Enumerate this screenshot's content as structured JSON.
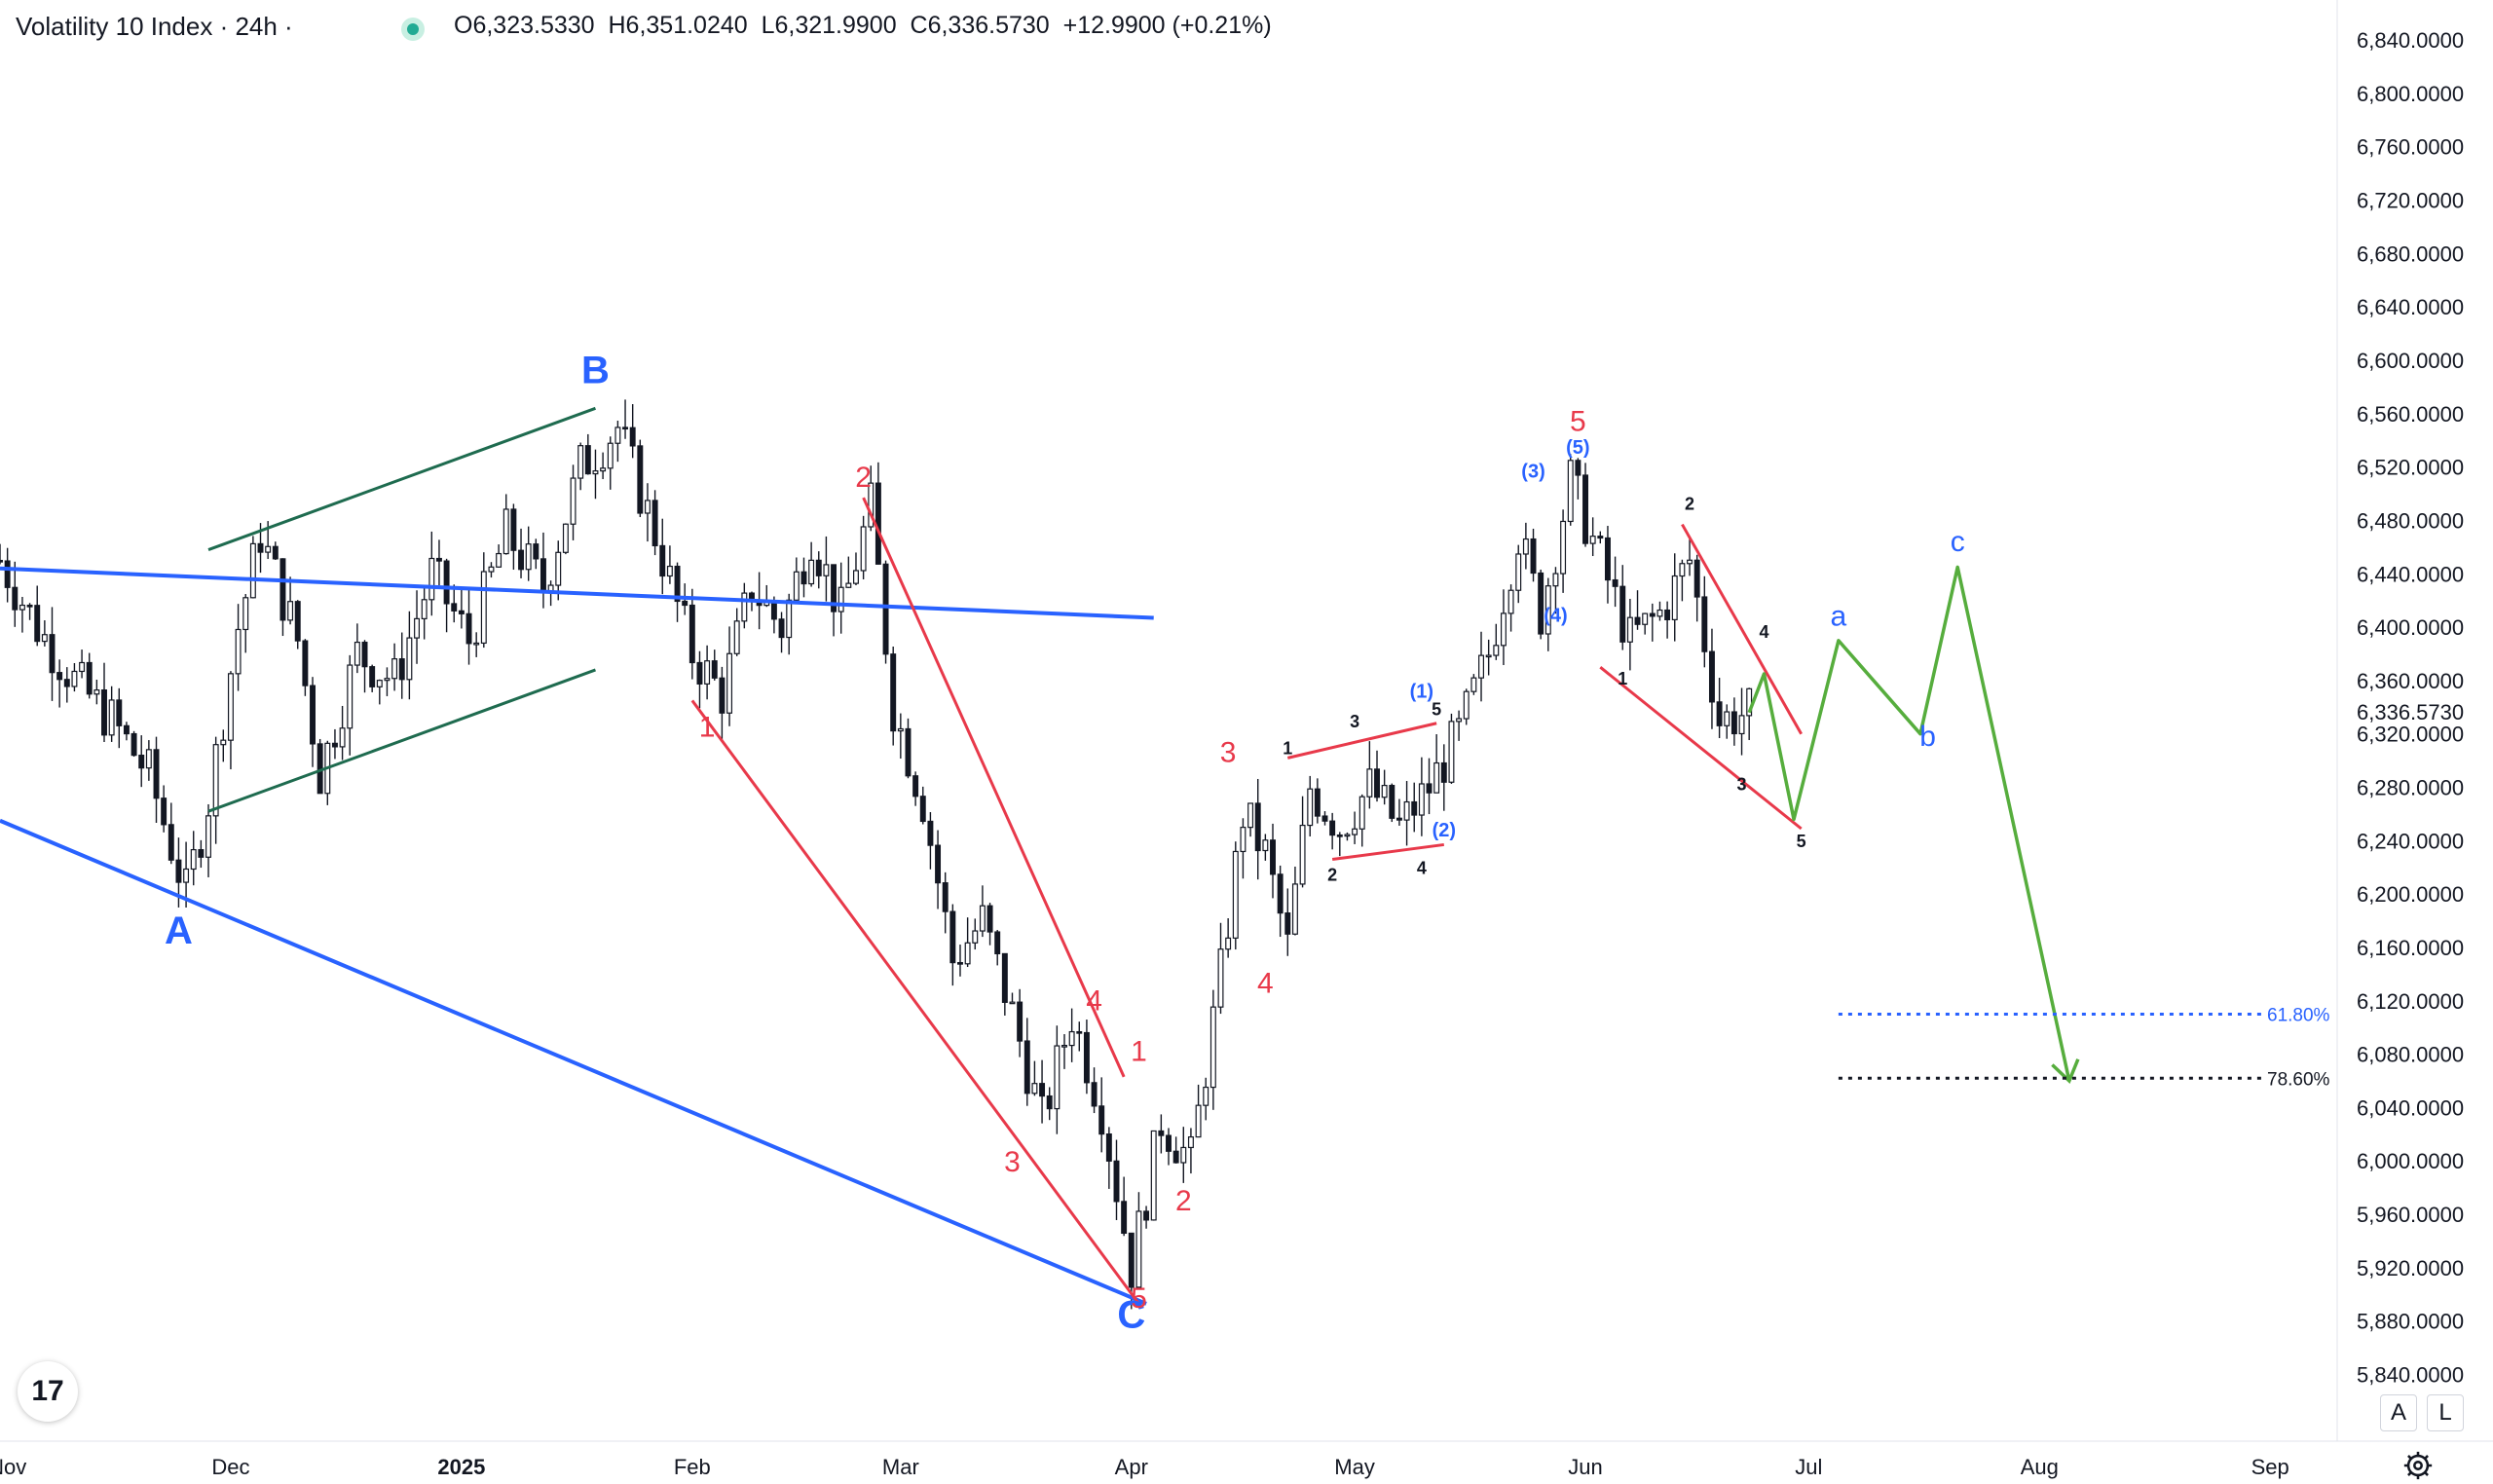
{
  "header": {
    "symbol": "Volatility 10 Index · 24h ·",
    "ohlc": {
      "open_label": "O",
      "open": "6,323.5330",
      "high_label": "H",
      "high": "6,351.0240",
      "low_label": "L",
      "low": "6,321.9900",
      "close_label": "C",
      "close": "6,336.5730",
      "change": "+12.9900 (+0.21%)"
    },
    "status_color": "#22ab94"
  },
  "chart_data": {
    "type": "candlestick",
    "price_axis": {
      "ylim": [
        5790,
        6870
      ],
      "ticks": [
        6840,
        6800,
        6760,
        6720,
        6680,
        6640,
        6600,
        6560,
        6520,
        6480,
        6440,
        6400,
        6360,
        6320,
        6280,
        6240,
        6200,
        6160,
        6120,
        6080,
        6040,
        6000,
        5960,
        5920,
        5880,
        5840
      ],
      "tick_labels": [
        "6,840.0000",
        "6,800.0000",
        "6,760.0000",
        "6,720.0000",
        "6,680.0000",
        "6,640.0000",
        "6,600.0000",
        "6,560.0000",
        "6,520.0000",
        "6,480.0000",
        "6,440.0000",
        "6,400.0000",
        "6,360.0000",
        "6,320.0000",
        "6,280.0000",
        "6,240.0000",
        "6,200.0000",
        "6,160.0000",
        "6,120.0000",
        "6,080.0000",
        "6,040.0000",
        "6,000.0000",
        "5,960.0000",
        "5,920.0000",
        "5,880.0000",
        "5,840.0000"
      ],
      "last_price": 6336.573,
      "last_price_label": "6,336.5730"
    },
    "time_axis": {
      "range": [
        "2024-10-31",
        "2025-09-10"
      ],
      "ticks": [
        {
          "date": "2024-11-01",
          "label": "Nov",
          "bold": false
        },
        {
          "date": "2024-12-01",
          "label": "Dec",
          "bold": false
        },
        {
          "date": "2025-01-01",
          "label": "2025",
          "bold": true
        },
        {
          "date": "2025-02-01",
          "label": "Feb",
          "bold": false
        },
        {
          "date": "2025-03-01",
          "label": "Mar",
          "bold": false
        },
        {
          "date": "2025-04-01",
          "label": "Apr",
          "bold": false
        },
        {
          "date": "2025-05-01",
          "label": "May",
          "bold": false
        },
        {
          "date": "2025-06-01",
          "label": "Jun",
          "bold": false
        },
        {
          "date": "2025-07-01",
          "label": "Jul",
          "bold": false
        },
        {
          "date": "2025-08-01",
          "label": "Aug",
          "bold": false
        },
        {
          "date": "2025-09-01",
          "label": "Sep",
          "bold": false
        }
      ]
    },
    "price_path": [
      {
        "date": "2024-10-31",
        "price": 6450
      },
      {
        "date": "2024-11-05",
        "price": 6400
      },
      {
        "date": "2024-11-10",
        "price": 6360
      },
      {
        "date": "2024-11-15",
        "price": 6330
      },
      {
        "date": "2024-11-20",
        "price": 6290
      },
      {
        "date": "2024-11-25",
        "price": 6200
      },
      {
        "date": "2024-11-28",
        "price": 6270
      },
      {
        "date": "2024-12-02",
        "price": 6400
      },
      {
        "date": "2024-12-05",
        "price": 6470
      },
      {
        "date": "2024-12-10",
        "price": 6390
      },
      {
        "date": "2024-12-13",
        "price": 6290
      },
      {
        "date": "2024-12-18",
        "price": 6380
      },
      {
        "date": "2024-12-23",
        "price": 6360
      },
      {
        "date": "2024-12-28",
        "price": 6440
      },
      {
        "date": "2025-01-02",
        "price": 6390
      },
      {
        "date": "2025-01-07",
        "price": 6470
      },
      {
        "date": "2025-01-12",
        "price": 6430
      },
      {
        "date": "2025-01-17",
        "price": 6520
      },
      {
        "date": "2025-01-22",
        "price": 6550
      },
      {
        "date": "2025-01-27",
        "price": 6470
      },
      {
        "date": "2025-02-01",
        "price": 6380
      },
      {
        "date": "2025-02-05",
        "price": 6350
      },
      {
        "date": "2025-02-09",
        "price": 6430
      },
      {
        "date": "2025-02-13",
        "price": 6400
      },
      {
        "date": "2025-02-17",
        "price": 6470
      },
      {
        "date": "2025-02-21",
        "price": 6410
      },
      {
        "date": "2025-02-25",
        "price": 6490
      },
      {
        "date": "2025-02-28",
        "price": 6340
      },
      {
        "date": "2025-03-04",
        "price": 6270
      },
      {
        "date": "2025-03-08",
        "price": 6150
      },
      {
        "date": "2025-03-12",
        "price": 6180
      },
      {
        "date": "2025-03-16",
        "price": 6110
      },
      {
        "date": "2025-03-20",
        "price": 6030
      },
      {
        "date": "2025-03-24",
        "price": 6110
      },
      {
        "date": "2025-03-28",
        "price": 6040
      },
      {
        "date": "2025-04-01",
        "price": 5920
      },
      {
        "date": "2025-04-05",
        "price": 6030
      },
      {
        "date": "2025-04-09",
        "price": 6000
      },
      {
        "date": "2025-04-13",
        "price": 6140
      },
      {
        "date": "2025-04-16",
        "price": 6260
      },
      {
        "date": "2025-04-19",
        "price": 6230
      },
      {
        "date": "2025-04-22",
        "price": 6160
      },
      {
        "date": "2025-04-25",
        "price": 6280
      },
      {
        "date": "2025-04-29",
        "price": 6250
      },
      {
        "date": "2025-05-03",
        "price": 6280
      },
      {
        "date": "2025-05-07",
        "price": 6250
      },
      {
        "date": "2025-05-11",
        "price": 6280
      },
      {
        "date": "2025-05-15",
        "price": 6320
      },
      {
        "date": "2025-05-19",
        "price": 6380
      },
      {
        "date": "2025-05-23",
        "price": 6470
      },
      {
        "date": "2025-05-26",
        "price": 6410
      },
      {
        "date": "2025-05-30",
        "price": 6510
      },
      {
        "date": "2025-06-03",
        "price": 6450
      },
      {
        "date": "2025-06-07",
        "price": 6390
      },
      {
        "date": "2025-06-11",
        "price": 6410
      },
      {
        "date": "2025-06-15",
        "price": 6450
      },
      {
        "date": "2025-06-19",
        "price": 6330
      },
      {
        "date": "2025-06-23",
        "price": 6336.573
      }
    ],
    "channel_lines": [
      {
        "color": "#2962ff",
        "points": [
          {
            "date": "2024-10-31",
            "price": 6444
          },
          {
            "date": "2025-04-04",
            "price": 6407
          }
        ],
        "note": "upper"
      },
      {
        "color": "#2962ff",
        "points": [
          {
            "date": "2024-10-31",
            "price": 6255
          },
          {
            "date": "2025-04-03",
            "price": 5893
          }
        ]
      }
    ],
    "trend_lines": [
      {
        "color": "#1e6b4f",
        "points": [
          {
            "date": "2024-11-28",
            "price": 6458
          },
          {
            "date": "2025-01-19",
            "price": 6564
          }
        ]
      },
      {
        "color": "#1e6b4f",
        "points": [
          {
            "date": "2024-11-28",
            "price": 6262
          },
          {
            "date": "2025-01-19",
            "price": 6368
          }
        ]
      },
      {
        "color": "#e8394a",
        "points": [
          {
            "date": "2025-02-01",
            "price": 6345
          },
          {
            "date": "2025-04-02",
            "price": 5893
          }
        ]
      },
      {
        "color": "#e8394a",
        "points": [
          {
            "date": "2025-02-24",
            "price": 6497
          },
          {
            "date": "2025-03-31",
            "price": 6063
          }
        ]
      },
      {
        "color": "#e8394a",
        "points": [
          {
            "date": "2025-04-22",
            "price": 6302
          },
          {
            "date": "2025-05-12",
            "price": 6328
          }
        ]
      },
      {
        "color": "#e8394a",
        "points": [
          {
            "date": "2025-04-28",
            "price": 6226
          },
          {
            "date": "2025-05-13",
            "price": 6237
          }
        ]
      },
      {
        "color": "#e8394a",
        "points": [
          {
            "date": "2025-06-14",
            "price": 6477
          },
          {
            "date": "2025-06-30",
            "price": 6320
          }
        ]
      },
      {
        "color": "#e8394a",
        "points": [
          {
            "date": "2025-06-03",
            "price": 6370
          },
          {
            "date": "2025-06-30",
            "price": 6249
          }
        ]
      }
    ],
    "projection": {
      "color": "#56ad3d",
      "points": [
        {
          "date": "2025-06-23",
          "price": 6336
        },
        {
          "date": "2025-06-25",
          "price": 6365
        },
        {
          "date": "2025-06-29",
          "price": 6256
        },
        {
          "date": "2025-07-05",
          "price": 6390
        },
        {
          "date": "2025-07-16",
          "price": 6320
        },
        {
          "date": "2025-07-21",
          "price": 6445
        },
        {
          "date": "2025-08-05",
          "price": 6060
        }
      ]
    },
    "fib_levels": [
      {
        "label": "61.80%",
        "price": 6110,
        "color": "#2962ff",
        "from": "2025-07-05",
        "to": "2025-08-31"
      },
      {
        "label": "78.60%",
        "price": 6062,
        "color": "#131722",
        "from": "2025-07-05",
        "to": "2025-08-31"
      }
    ],
    "wave_labels": [
      {
        "text": "A",
        "date": "2024-11-24",
        "price": 6163,
        "color": "#2962ff",
        "size": "large"
      },
      {
        "text": "B",
        "date": "2025-01-19",
        "price": 6583,
        "color": "#2962ff",
        "size": "large"
      },
      {
        "text": "C",
        "date": "2025-04-01",
        "price": 5875,
        "color": "#2962ff",
        "size": "large"
      },
      {
        "text": "1",
        "date": "2025-02-03",
        "price": 6318,
        "color": "#e8394a",
        "size": "medium"
      },
      {
        "text": "2",
        "date": "2025-02-24",
        "price": 6505,
        "color": "#e8394a",
        "size": "medium"
      },
      {
        "text": "3",
        "date": "2025-03-16",
        "price": 5992,
        "color": "#e8394a",
        "size": "medium"
      },
      {
        "text": "4",
        "date": "2025-03-27",
        "price": 6113,
        "color": "#e8394a",
        "size": "medium"
      },
      {
        "text": "5",
        "date": "2025-04-02",
        "price": 5890,
        "color": "#e8394a",
        "size": "medium"
      },
      {
        "text": "1",
        "date": "2025-04-02",
        "price": 6075,
        "color": "#e8394a",
        "size": "medium"
      },
      {
        "text": "2",
        "date": "2025-04-08",
        "price": 5963,
        "color": "#e8394a",
        "size": "medium"
      },
      {
        "text": "3",
        "date": "2025-04-14",
        "price": 6299,
        "color": "#e8394a",
        "size": "medium"
      },
      {
        "text": "4",
        "date": "2025-04-19",
        "price": 6126,
        "color": "#e8394a",
        "size": "medium"
      },
      {
        "text": "5",
        "date": "2025-05-31",
        "price": 6547,
        "color": "#e8394a",
        "size": "medium"
      },
      {
        "text": "(1)",
        "date": "2025-05-10",
        "price": 6347,
        "color": "#2962ff",
        "size": "small"
      },
      {
        "text": "(2)",
        "date": "2025-05-13",
        "price": 6243,
        "color": "#2962ff",
        "size": "small"
      },
      {
        "text": "(3)",
        "date": "2025-05-25",
        "price": 6512,
        "color": "#2962ff",
        "size": "small"
      },
      {
        "text": "(4)",
        "date": "2025-05-28",
        "price": 6404,
        "color": "#2962ff",
        "size": "small"
      },
      {
        "text": "(5)",
        "date": "2025-05-31",
        "price": 6530,
        "color": "#2962ff",
        "size": "small"
      },
      {
        "text": "1",
        "date": "2025-04-22",
        "price": 6305,
        "color": "#131722",
        "size": "tiny"
      },
      {
        "text": "2",
        "date": "2025-04-28",
        "price": 6210,
        "color": "#131722",
        "size": "tiny"
      },
      {
        "text": "3",
        "date": "2025-05-01",
        "price": 6325,
        "color": "#131722",
        "size": "tiny"
      },
      {
        "text": "4",
        "date": "2025-05-10",
        "price": 6215,
        "color": "#131722",
        "size": "tiny"
      },
      {
        "text": "5",
        "date": "2025-05-12",
        "price": 6334,
        "color": "#131722",
        "size": "tiny"
      },
      {
        "text": "1",
        "date": "2025-06-06",
        "price": 6357,
        "color": "#131722",
        "size": "tiny"
      },
      {
        "text": "2",
        "date": "2025-06-15",
        "price": 6488,
        "color": "#131722",
        "size": "tiny"
      },
      {
        "text": "3",
        "date": "2025-06-22",
        "price": 6278,
        "color": "#131722",
        "size": "tiny"
      },
      {
        "text": "4",
        "date": "2025-06-25",
        "price": 6392,
        "color": "#131722",
        "size": "tiny"
      },
      {
        "text": "5",
        "date": "2025-06-30",
        "price": 6235,
        "color": "#131722",
        "size": "tiny"
      },
      {
        "text": "a",
        "date": "2025-07-05",
        "price": 6401,
        "color": "#2962ff",
        "size": "medium"
      },
      {
        "text": "b",
        "date": "2025-07-17",
        "price": 6311,
        "color": "#2962ff",
        "size": "medium"
      },
      {
        "text": "c",
        "date": "2025-07-21",
        "price": 6457,
        "color": "#2962ff",
        "size": "medium"
      }
    ]
  },
  "footer": {
    "logo_text": "17",
    "scale_auto": "A",
    "scale_log": "L"
  }
}
